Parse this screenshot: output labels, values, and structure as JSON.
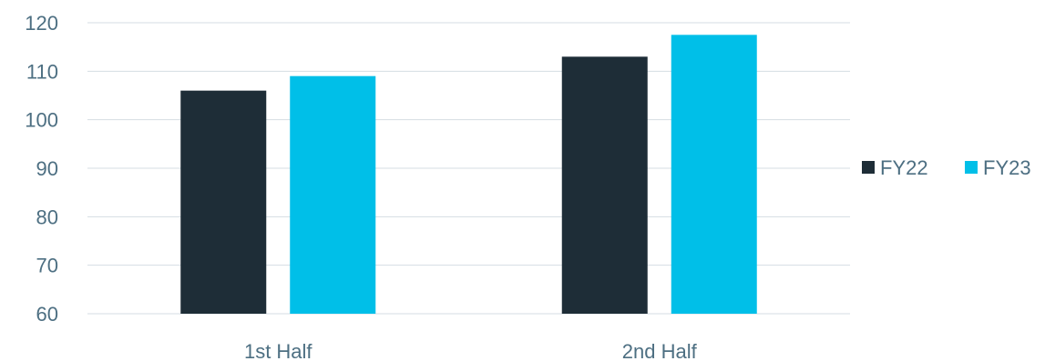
{
  "chart_data": {
    "type": "bar",
    "categories": [
      "1st Half",
      "2nd Half"
    ],
    "series": [
      {
        "name": "FY22",
        "values": [
          106,
          113
        ],
        "color": "#1e2d37"
      },
      {
        "name": "FY23",
        "values": [
          109,
          117.5
        ],
        "color": "#00bfe8"
      }
    ],
    "ylim": [
      60,
      120
    ],
    "yticks": [
      "60",
      "70",
      "80",
      "90",
      "100",
      "110",
      "120"
    ],
    "grid": true,
    "legend": "right",
    "text_color": "#4d6f82",
    "grid_color": "#d5dde3"
  }
}
